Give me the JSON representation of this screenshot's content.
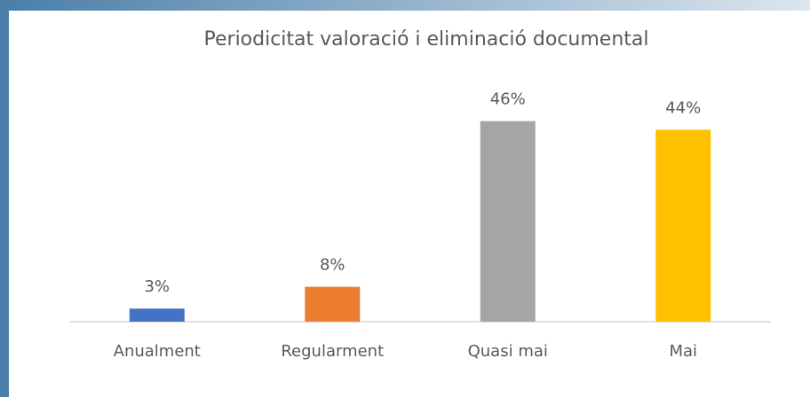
{
  "chart_data": {
    "type": "bar",
    "title": "Periodicitat valoració i eliminació documental",
    "categories": [
      "Anualment",
      "Regularment",
      "Quasi mai",
      "Mai"
    ],
    "values": [
      3,
      8,
      46,
      44
    ],
    "value_labels": [
      "3%",
      "8%",
      "46%",
      "44%"
    ],
    "colors": [
      "#4472c4",
      "#ed7d31",
      "#a5a5a5",
      "#ffc000"
    ],
    "ylim": [
      0,
      50
    ],
    "grid": false
  }
}
